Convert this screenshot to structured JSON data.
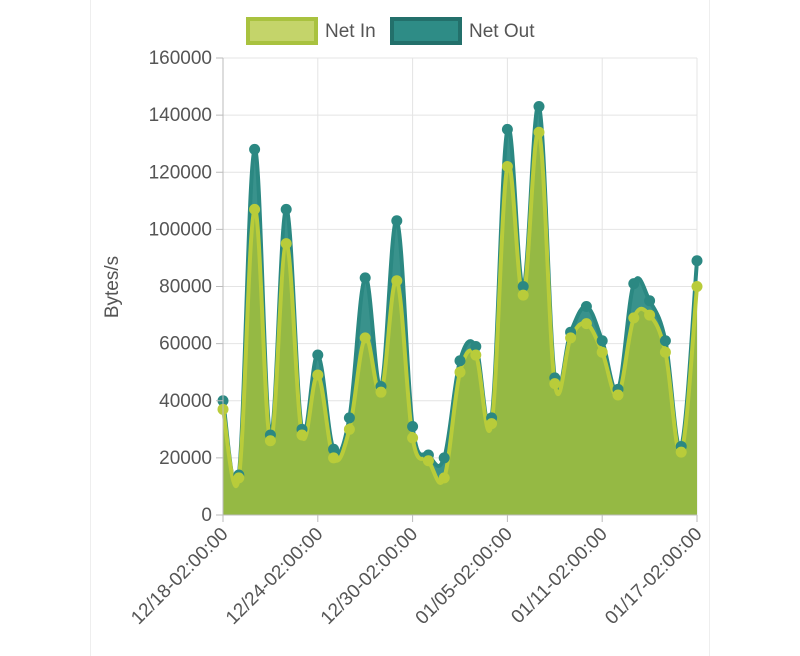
{
  "chart_data": {
    "type": "area",
    "title": "",
    "xlabel": "",
    "ylabel": "Bytes/s",
    "ylim": [
      0,
      160000
    ],
    "yticks": [
      0,
      20000,
      40000,
      60000,
      80000,
      100000,
      120000,
      140000,
      160000
    ],
    "xticks": [
      "12/18-02:00:00",
      "12/24-02:00:00",
      "12/30-02:00:00",
      "01/05-02:00:00",
      "01/11-02:00:00",
      "01/17-02:00:00"
    ],
    "xlim": [
      "12/18-02:00:00",
      "01/17-02:00:00"
    ],
    "grid": true,
    "legend": "top-center",
    "series": [
      {
        "name": "Net In",
        "color": "#a9c23f",
        "fill": "#c4d46a",
        "x": [
          "12/18-02:00:00",
          "12/19-02:00:00",
          "12/20-02:00:00",
          "12/21-02:00:00",
          "12/22-02:00:00",
          "12/23-02:00:00",
          "12/24-02:00:00",
          "12/25-02:00:00",
          "12/26-02:00:00",
          "12/27-02:00:00",
          "12/28-02:00:00",
          "12/29-02:00:00",
          "12/30-02:00:00",
          "12/31-02:00:00",
          "01/01-02:00:00",
          "01/02-02:00:00",
          "01/03-02:00:00",
          "01/04-02:00:00",
          "01/05-02:00:00",
          "01/06-02:00:00",
          "01/07-02:00:00",
          "01/08-02:00:00",
          "01/09-02:00:00",
          "01/10-02:00:00",
          "01/11-02:00:00",
          "01/12-02:00:00",
          "01/13-02:00:00",
          "01/14-02:00:00",
          "01/15-02:00:00",
          "01/16-02:00:00",
          "01/17-02:00:00"
        ],
        "values": [
          37000,
          13000,
          107000,
          26000,
          95000,
          28000,
          49000,
          20000,
          30000,
          62000,
          43000,
          82000,
          27000,
          19000,
          13000,
          50000,
          56000,
          32000,
          122000,
          77000,
          134000,
          46000,
          62000,
          67000,
          57000,
          42000,
          69000,
          70000,
          57000,
          22000,
          80000
        ]
      },
      {
        "name": "Net Out",
        "color": "#2e8c86",
        "fill": "#2e8c86",
        "x": [
          "12/18-02:00:00",
          "12/19-02:00:00",
          "12/20-02:00:00",
          "12/21-02:00:00",
          "12/22-02:00:00",
          "12/23-02:00:00",
          "12/24-02:00:00",
          "12/25-02:00:00",
          "12/26-02:00:00",
          "12/27-02:00:00",
          "12/28-02:00:00",
          "12/29-02:00:00",
          "12/30-02:00:00",
          "12/31-02:00:00",
          "01/01-02:00:00",
          "01/02-02:00:00",
          "01/03-02:00:00",
          "01/04-02:00:00",
          "01/05-02:00:00",
          "01/06-02:00:00",
          "01/07-02:00:00",
          "01/08-02:00:00",
          "01/09-02:00:00",
          "01/10-02:00:00",
          "01/11-02:00:00",
          "01/12-02:00:00",
          "01/13-02:00:00",
          "01/14-02:00:00",
          "01/15-02:00:00",
          "01/16-02:00:00",
          "01/17-02:00:00"
        ],
        "values": [
          40000,
          14000,
          128000,
          28000,
          107000,
          30000,
          56000,
          23000,
          34000,
          83000,
          45000,
          103000,
          31000,
          21000,
          20000,
          54000,
          59000,
          34000,
          135000,
          80000,
          143000,
          48000,
          64000,
          73000,
          61000,
          44000,
          81000,
          75000,
          61000,
          24000,
          89000
        ]
      }
    ]
  }
}
